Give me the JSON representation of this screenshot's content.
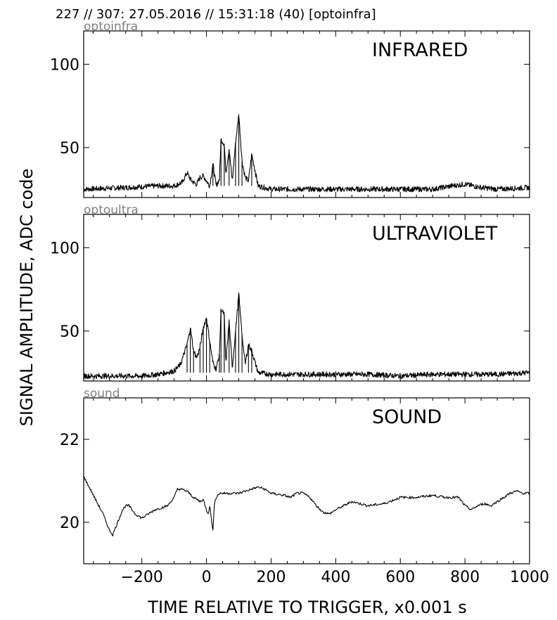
{
  "header": {
    "text": "227 // 307:   27.05.2016 // 15:31:18 (40)  [optoinfra]"
  },
  "chart_data": {
    "type": "line",
    "shared_x_range": [
      -380,
      1000
    ],
    "x_ticks": [
      -200,
      0,
      200,
      400,
      600,
      800,
      1000
    ],
    "x_tick_labels": [
      "−200",
      "0",
      "200",
      "400",
      "600",
      "800",
      "1000"
    ],
    "xlabel": "TIME RELATIVE TO TRIGGER,   x0.001 s",
    "ylabel": "SIGNAL AMPLITUDE,  ADC code",
    "grid": false,
    "panels": [
      {
        "tag": "optoinfra",
        "title": "INFRARED",
        "ylim": [
          20,
          120
        ],
        "y_ticks": [
          50,
          100
        ],
        "y_tick_labels": [
          "50",
          "100"
        ],
        "baseline": 25,
        "series": [
          {
            "x": [
              -380,
              -250,
              -150,
              -100,
              -75,
              -60,
              -50,
              -40,
              -30,
              -20,
              -10,
              0,
              10,
              20,
              30,
              40,
              45,
              55,
              60,
              70,
              80,
              90,
              100,
              110,
              120,
              130,
              140,
              160,
              200,
              300,
              400,
              500,
              600,
              700,
              760,
              800,
              850,
              900,
              1000
            ],
            "y": [
              25,
              26,
              27,
              27,
              29,
              35,
              31,
              29,
              28,
              32,
              33,
              30,
              27,
              40,
              27,
              31,
              55,
              52,
              35,
              49,
              30,
              53,
              70,
              42,
              32,
              30,
              46,
              27,
              25,
              25,
              25,
              25,
              25,
              25,
              27,
              28,
              26,
              25,
              26
            ]
          }
        ]
      },
      {
        "tag": "optoultra",
        "title": "ULTRAVIOLET",
        "ylim": [
          20,
          120
        ],
        "y_ticks": [
          50,
          100
        ],
        "y_tick_labels": [
          "50",
          "100"
        ],
        "baseline": 23,
        "series": [
          {
            "x": [
              -380,
              -200,
              -150,
              -100,
              -80,
              -60,
              -50,
              -40,
              -30,
              -20,
              -10,
              0,
              10,
              20,
              30,
              40,
              45,
              55,
              60,
              70,
              80,
              90,
              100,
              110,
              120,
              130,
              140,
              160,
              200,
              300,
              400,
              500,
              600,
              700,
              800,
              900,
              1000
            ],
            "y": [
              23,
              23,
              24,
              26,
              30,
              42,
              52,
              38,
              34,
              40,
              52,
              58,
              44,
              31,
              27,
              36,
              63,
              60,
              30,
              56,
              28,
              50,
              72,
              48,
              30,
              42,
              38,
              25,
              24,
              24,
              24,
              24,
              23,
              24,
              24,
              24,
              25
            ]
          }
        ]
      },
      {
        "tag": "sound",
        "title": "SOUND",
        "ylim": [
          19,
          23
        ],
        "y_ticks": [
          20,
          22
        ],
        "y_tick_labels": [
          "20",
          "22"
        ],
        "series": [
          {
            "x": [
              -380,
              -360,
              -340,
              -320,
              -300,
              -290,
              -280,
              -260,
              -250,
              -240,
              -220,
              -200,
              -180,
              -160,
              -140,
              -120,
              -100,
              -90,
              -80,
              -60,
              -40,
              -20,
              -10,
              0,
              5,
              10,
              15,
              20,
              25,
              30,
              40,
              60,
              80,
              100,
              120,
              140,
              160,
              180,
              200,
              240,
              260,
              280,
              300,
              320,
              340,
              360,
              380,
              400,
              450,
              500,
              550,
              600,
              650,
              700,
              740,
              760,
              780,
              800,
              820,
              840,
              860,
              880,
              900,
              920,
              940,
              960,
              980,
              1000
            ],
            "y": [
              21.1,
              20.8,
              20.5,
              20.2,
              19.8,
              19.7,
              19.9,
              20.3,
              20.4,
              20.4,
              20.2,
              20.1,
              20.2,
              20.3,
              20.35,
              20.4,
              20.6,
              20.8,
              20.8,
              20.75,
              20.6,
              20.5,
              20.55,
              20.3,
              20.2,
              20.4,
              20.1,
              19.8,
              20.5,
              20.6,
              20.7,
              20.7,
              20.7,
              20.7,
              20.75,
              20.8,
              20.85,
              20.8,
              20.7,
              20.65,
              20.6,
              20.7,
              20.7,
              20.6,
              20.4,
              20.25,
              20.2,
              20.3,
              20.5,
              20.4,
              20.45,
              20.6,
              20.6,
              20.65,
              20.6,
              20.6,
              20.6,
              20.4,
              20.3,
              20.4,
              20.45,
              20.4,
              20.5,
              20.6,
              20.7,
              20.75,
              20.7,
              20.7
            ]
          }
        ]
      }
    ]
  }
}
